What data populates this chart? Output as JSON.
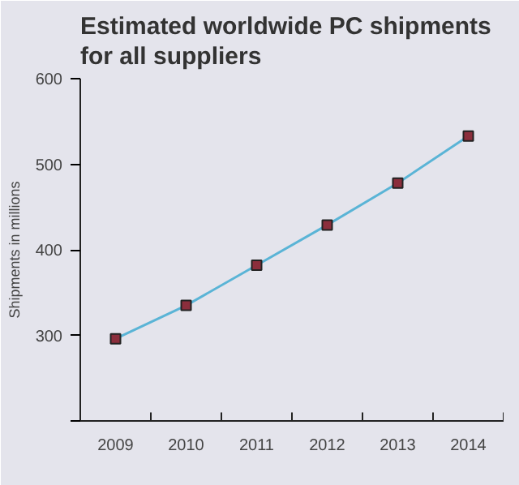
{
  "chart_data": {
    "type": "line",
    "title": "Estimated worldwide PC shipments\nfor all suppliers",
    "ylabel": "Shipments in millions",
    "categories": [
      "2009",
      "2010",
      "2011",
      "2012",
      "2013",
      "2014"
    ],
    "series": [
      {
        "color": "#5ab4d6",
        "values": [
          296,
          335,
          382,
          429,
          478,
          533
        ]
      }
    ],
    "ylim": [
      200,
      600
    ],
    "yticks": [
      {
        "value": 200,
        "label": null
      },
      300,
      400,
      500,
      600
    ],
    "marker": "square",
    "grid": false
  }
}
